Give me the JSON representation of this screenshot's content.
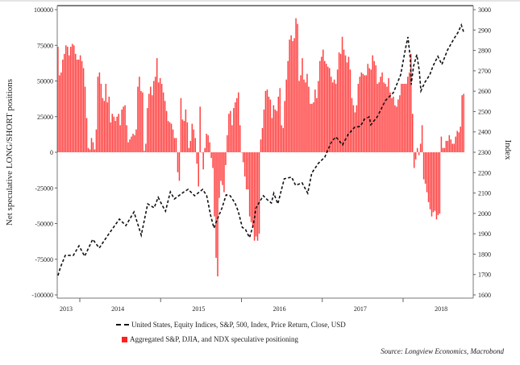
{
  "chart_data": {
    "type": "bar+line",
    "left_axis": {
      "label": "Net speculative LONG/SHORT positions",
      "ylim": [
        -100000,
        100000
      ],
      "ticks": [
        100000,
        75000,
        50000,
        25000,
        0,
        -25000,
        -50000,
        -75000,
        -100000
      ]
    },
    "right_axis": {
      "label": "Index",
      "ylim": [
        1600,
        3000
      ],
      "ticks": [
        3000,
        2900,
        2800,
        2700,
        2600,
        2500,
        2400,
        2300,
        2200,
        2100,
        2000,
        1900,
        1800,
        1700,
        1600
      ]
    },
    "x_axis": {
      "xlim": [
        2013.72,
        2018.87
      ],
      "tick_years": [
        2014,
        2015,
        2016,
        2017,
        2018
      ],
      "labels": [
        "2013",
        "2014",
        "2015",
        "2016",
        "2017",
        "2018"
      ]
    },
    "grid": false,
    "legend_placement": "bottom",
    "series": [
      {
        "name": "Aggregated S&P, DJIA, and NDX speculative positioning",
        "type": "bar",
        "color": "#ff2020",
        "frequency": "weekly",
        "x_range": [
          2013.73,
          2018.75
        ],
        "values_thousands": [
          74,
          54,
          56,
          65,
          69,
          75,
          74,
          68,
          74,
          76,
          75,
          69,
          65,
          65,
          68,
          64,
          59,
          46,
          24,
          3,
          2,
          10,
          7,
          2,
          16,
          53,
          56,
          48,
          38,
          36,
          48,
          35,
          39,
          21,
          27,
          25,
          22,
          25,
          27,
          19,
          30,
          32,
          33,
          19,
          7,
          9,
          11,
          13,
          12,
          16,
          46,
          53,
          43,
          42,
          1,
          6,
          31,
          41,
          46,
          40,
          50,
          53,
          66,
          49,
          52,
          48,
          42,
          36,
          29,
          22,
          21,
          20,
          16,
          10,
          10,
          -14,
          -20,
          38,
          23,
          22,
          30,
          21,
          3,
          8,
          20,
          16,
          10,
          -8,
          -24,
          32,
          0,
          -12,
          3,
          13,
          12,
          7,
          -4,
          -11,
          -45,
          -74,
          -87,
          -32,
          -20,
          -23,
          -28,
          -9,
          12,
          27,
          29,
          19,
          31,
          35,
          38,
          42,
          19,
          0,
          -7,
          -17,
          -26,
          -26,
          -45,
          -49,
          -53,
          -62,
          -59,
          -62,
          -57,
          9,
          17,
          30,
          43,
          44,
          39,
          37,
          24,
          33,
          30,
          29,
          39,
          45,
          19,
          17,
          36,
          51,
          64,
          79,
          82,
          78,
          80,
          94,
          90,
          50,
          54,
          66,
          51,
          49,
          55,
          46,
          34,
          34,
          35,
          44,
          38,
          50,
          64,
          67,
          72,
          64,
          62,
          60,
          59,
          53,
          49,
          51,
          48,
          58,
          70,
          69,
          81,
          72,
          68,
          63,
          67,
          58,
          38,
          33,
          28,
          33,
          48,
          53,
          56,
          55,
          54,
          54,
          62,
          59,
          58,
          68,
          64,
          61,
          48,
          49,
          53,
          56,
          49,
          48,
          46,
          52,
          42,
          38,
          39,
          33,
          32,
          37,
          40,
          48,
          48,
          48,
          48,
          53,
          56,
          69,
          27,
          -11,
          -5,
          3,
          -2,
          6,
          19,
          -19,
          -22,
          -28,
          -35,
          -40,
          -45,
          -42,
          -41,
          -47,
          -44,
          -43,
          11,
          3,
          3,
          8,
          8,
          12,
          9,
          6,
          6,
          11,
          15,
          14,
          18,
          40,
          41
        ]
      },
      {
        "name": "United States, Equity Indices, S&P, 500, Index, Price Return, Close, USD",
        "type": "line",
        "style": "dashed",
        "color": "#111111",
        "points": [
          [
            2013.73,
            1695
          ],
          [
            2013.76,
            1735
          ],
          [
            2013.82,
            1794
          ],
          [
            2013.92,
            1794
          ],
          [
            2013.99,
            1841
          ],
          [
            2014.06,
            1790
          ],
          [
            2014.16,
            1873
          ],
          [
            2014.24,
            1830
          ],
          [
            2014.36,
            1900
          ],
          [
            2014.49,
            1972
          ],
          [
            2014.57,
            1940
          ],
          [
            2014.67,
            2007
          ],
          [
            2014.76,
            1893
          ],
          [
            2014.84,
            2047
          ],
          [
            2014.92,
            2027
          ],
          [
            2014.97,
            2079
          ],
          [
            2015.02,
            2039
          ],
          [
            2015.06,
            2011
          ],
          [
            2015.12,
            2106
          ],
          [
            2015.17,
            2071
          ],
          [
            2015.29,
            2106
          ],
          [
            2015.34,
            2118
          ],
          [
            2015.42,
            2087
          ],
          [
            2015.52,
            2118
          ],
          [
            2015.57,
            2087
          ],
          [
            2015.62,
            1988
          ],
          [
            2015.66,
            1928
          ],
          [
            2015.69,
            1960
          ],
          [
            2015.76,
            2027
          ],
          [
            2015.81,
            2091
          ],
          [
            2015.86,
            2087
          ],
          [
            2015.92,
            2051
          ],
          [
            2015.96,
            2011
          ],
          [
            2016.01,
            1932
          ],
          [
            2016.05,
            1921
          ],
          [
            2016.1,
            1881
          ],
          [
            2016.15,
            1948
          ],
          [
            2016.18,
            2027
          ],
          [
            2016.27,
            2087
          ],
          [
            2016.32,
            2067
          ],
          [
            2016.37,
            2051
          ],
          [
            2016.4,
            2099
          ],
          [
            2016.45,
            2047
          ],
          [
            2016.53,
            2170
          ],
          [
            2016.62,
            2178
          ],
          [
            2016.67,
            2138
          ],
          [
            2016.75,
            2150
          ],
          [
            2016.82,
            2099
          ],
          [
            2016.87,
            2198
          ],
          [
            2016.95,
            2245
          ],
          [
            2017.03,
            2276
          ],
          [
            2017.12,
            2356
          ],
          [
            2017.17,
            2375
          ],
          [
            2017.25,
            2336
          ],
          [
            2017.32,
            2387
          ],
          [
            2017.4,
            2423
          ],
          [
            2017.47,
            2427
          ],
          [
            2017.52,
            2462
          ],
          [
            2017.58,
            2474
          ],
          [
            2017.6,
            2435
          ],
          [
            2017.68,
            2474
          ],
          [
            2017.78,
            2553
          ],
          [
            2017.88,
            2593
          ],
          [
            2017.97,
            2680
          ],
          [
            2018.03,
            2810
          ],
          [
            2018.06,
            2866
          ],
          [
            2018.09,
            2759
          ],
          [
            2018.1,
            2632
          ],
          [
            2018.13,
            2723
          ],
          [
            2018.17,
            2779
          ],
          [
            2018.2,
            2700
          ],
          [
            2018.22,
            2601
          ],
          [
            2018.27,
            2644
          ],
          [
            2018.33,
            2680
          ],
          [
            2018.37,
            2723
          ],
          [
            2018.43,
            2771
          ],
          [
            2018.48,
            2731
          ],
          [
            2018.55,
            2802
          ],
          [
            2018.63,
            2858
          ],
          [
            2018.68,
            2889
          ],
          [
            2018.72,
            2925
          ],
          [
            2018.75,
            2889
          ]
        ]
      }
    ]
  },
  "legend": {
    "line_label": "United States, Equity Indices, S&P, 500, Index, Price Return, Close, USD",
    "bar_label": "Aggregated S&P, DJIA, and NDX speculative positioning"
  },
  "source": "Source: Longview Economics, Macrobond"
}
